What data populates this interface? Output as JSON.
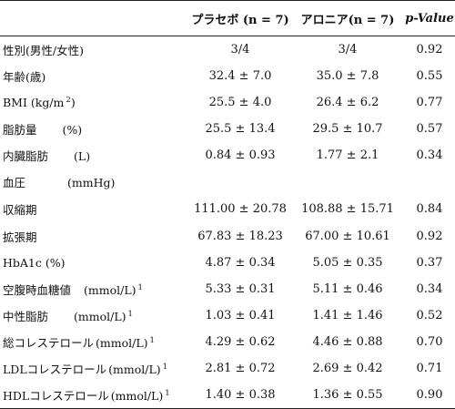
{
  "header": {
    "col0": "",
    "placebo_label": "プラセボ",
    "placebo_n": "(n = 7)",
    "aronia_label": "アロニア",
    "aronia_n": "(n = 7)",
    "pvalue": "p-Value"
  },
  "rows": [
    {
      "label": "性別(男性/女性)",
      "unit": "",
      "sup": "",
      "placebo": "3/4",
      "aronia": "3/4",
      "p": "0.92"
    },
    {
      "label": "年齢(歳)",
      "unit": "",
      "sup": "",
      "placebo": "32.4 ± 7.0",
      "aronia": "35.0 ± 7.8",
      "p": "0.55"
    },
    {
      "label": "BMI (kg/m",
      "unit": ")",
      "sup": "2",
      "placebo": "25.5 ± 4.0",
      "aronia": "26.4 ± 6.2",
      "p": "0.77"
    },
    {
      "label": "脂肪量",
      "unit": "(%)",
      "sup": "",
      "placebo": "25.5 ± 13.4",
      "aronia": "29.5 ± 10.7",
      "p": "0.57"
    },
    {
      "label": "内臓脂肪",
      "unit": "(L)",
      "sup": "",
      "placebo": "0.84 ± 0.93",
      "aronia": "1.77 ± 2.1",
      "p": "0.34"
    },
    {
      "label": "血圧",
      "unit": "(mmHg)",
      "sup": "",
      "placebo": "",
      "aronia": "",
      "p": ""
    },
    {
      "label": "収縮期",
      "unit": "",
      "sup": "",
      "placebo": "111.00 ± 20.78",
      "aronia": "108.88 ± 15.71",
      "p": "0.84"
    },
    {
      "label": "拡張期",
      "unit": "",
      "sup": "",
      "placebo": "67.83 ± 18.23",
      "aronia": "67.00 ± 10.61",
      "p": "0.92"
    },
    {
      "label": "HbA1c (%)",
      "unit": "",
      "sup": "",
      "placebo": "4.87 ± 0.34",
      "aronia": "5.05 ± 0.35",
      "p": "0.37"
    },
    {
      "label": "空腹時血糖値",
      "unit": "(mmol/L)",
      "sup": "1",
      "placebo": "5.33 ± 0.31",
      "aronia": "5.11 ± 0.46",
      "p": "0.34"
    },
    {
      "label": "中性脂肪",
      "unit": "(mmol/L)",
      "sup": "1",
      "placebo": "1.03 ± 0.41",
      "aronia": "1.41 ± 1.46",
      "p": "0.52"
    },
    {
      "label": "総コレステロール",
      "unit": "(mmol/L)",
      "sup": "1",
      "placebo": "4.29 ± 0.62",
      "aronia": "4.46 ± 0.88",
      "p": "0.70"
    },
    {
      "label": "LDLコレステロール",
      "unit": "(mmol/L)",
      "sup": "1",
      "placebo": "2.81 ± 0.72",
      "aronia": "2.69 ± 0.42",
      "p": "0.71"
    },
    {
      "label": "HDLコレステロール",
      "unit": "(mmol/L)",
      "sup": "1",
      "placebo": "1.40 ± 0.38",
      "aronia": "1.36 ± 0.55",
      "p": "0.90"
    }
  ]
}
